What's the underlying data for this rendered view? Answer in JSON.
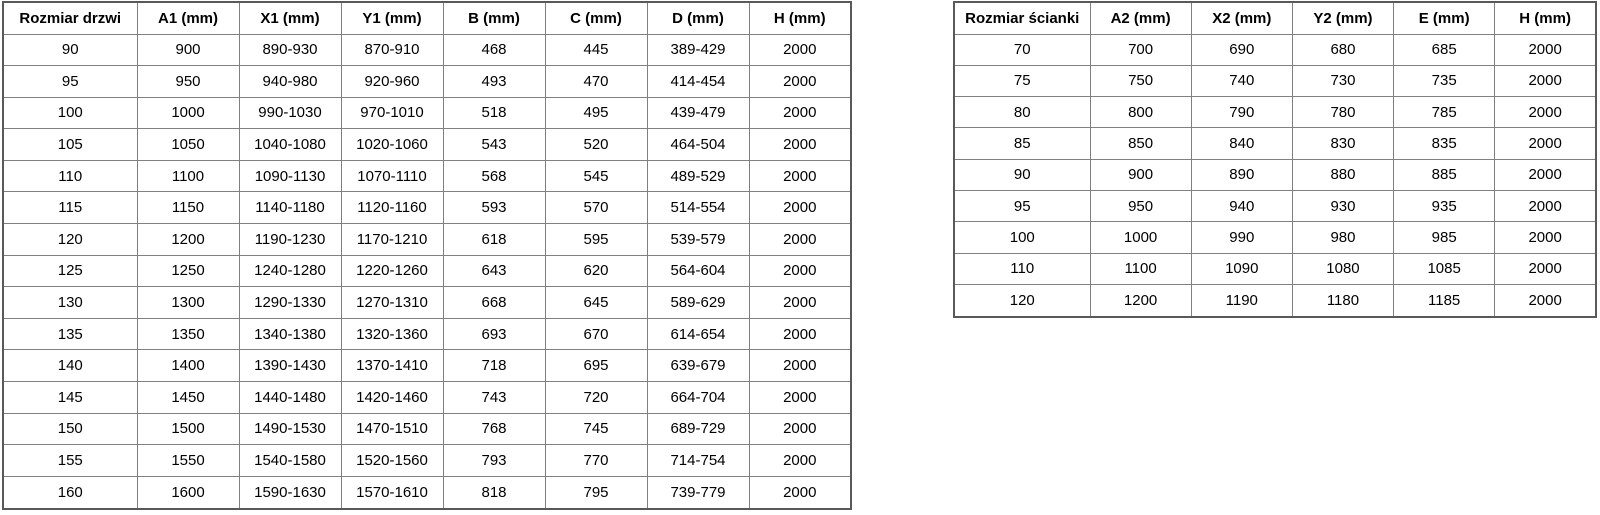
{
  "theme": {
    "page_bg": "#ffffff",
    "border_inner": "#808080",
    "border_outer": "#595959",
    "text": "#000000"
  },
  "door_table": {
    "headers": [
      "Rozmiar drzwi",
      "A1 (mm)",
      "X1 (mm)",
      "Y1 (mm)",
      "B (mm)",
      "C (mm)",
      "D (mm)",
      "H (mm)"
    ],
    "rows": [
      [
        "90",
        "900",
        "890-930",
        "870-910",
        "468",
        "445",
        "389-429",
        "2000"
      ],
      [
        "95",
        "950",
        "940-980",
        "920-960",
        "493",
        "470",
        "414-454",
        "2000"
      ],
      [
        "100",
        "1000",
        "990-1030",
        "970-1010",
        "518",
        "495",
        "439-479",
        "2000"
      ],
      [
        "105",
        "1050",
        "1040-1080",
        "1020-1060",
        "543",
        "520",
        "464-504",
        "2000"
      ],
      [
        "110",
        "1100",
        "1090-1130",
        "1070-1110",
        "568",
        "545",
        "489-529",
        "2000"
      ],
      [
        "115",
        "1150",
        "1140-1180",
        "1120-1160",
        "593",
        "570",
        "514-554",
        "2000"
      ],
      [
        "120",
        "1200",
        "1190-1230",
        "1170-1210",
        "618",
        "595",
        "539-579",
        "2000"
      ],
      [
        "125",
        "1250",
        "1240-1280",
        "1220-1260",
        "643",
        "620",
        "564-604",
        "2000"
      ],
      [
        "130",
        "1300",
        "1290-1330",
        "1270-1310",
        "668",
        "645",
        "589-629",
        "2000"
      ],
      [
        "135",
        "1350",
        "1340-1380",
        "1320-1360",
        "693",
        "670",
        "614-654",
        "2000"
      ],
      [
        "140",
        "1400",
        "1390-1430",
        "1370-1410",
        "718",
        "695",
        "639-679",
        "2000"
      ],
      [
        "145",
        "1450",
        "1440-1480",
        "1420-1460",
        "743",
        "720",
        "664-704",
        "2000"
      ],
      [
        "150",
        "1500",
        "1490-1530",
        "1470-1510",
        "768",
        "745",
        "689-729",
        "2000"
      ],
      [
        "155",
        "1550",
        "1540-1580",
        "1520-1560",
        "793",
        "770",
        "714-754",
        "2000"
      ],
      [
        "160",
        "1600",
        "1590-1630",
        "1570-1610",
        "818",
        "795",
        "739-779",
        "2000"
      ]
    ]
  },
  "wall_table": {
    "headers": [
      "Rozmiar ścianki",
      "A2 (mm)",
      "X2 (mm)",
      "Y2 (mm)",
      "E (mm)",
      "H (mm)"
    ],
    "rows": [
      [
        "70",
        "700",
        "690",
        "680",
        "685",
        "2000"
      ],
      [
        "75",
        "750",
        "740",
        "730",
        "735",
        "2000"
      ],
      [
        "80",
        "800",
        "790",
        "780",
        "785",
        "2000"
      ],
      [
        "85",
        "850",
        "840",
        "830",
        "835",
        "2000"
      ],
      [
        "90",
        "900",
        "890",
        "880",
        "885",
        "2000"
      ],
      [
        "95",
        "950",
        "940",
        "930",
        "935",
        "2000"
      ],
      [
        "100",
        "1000",
        "990",
        "980",
        "985",
        "2000"
      ],
      [
        "110",
        "1100",
        "1090",
        "1080",
        "1085",
        "2000"
      ],
      [
        "120",
        "1200",
        "1190",
        "1180",
        "1185",
        "2000"
      ]
    ]
  }
}
